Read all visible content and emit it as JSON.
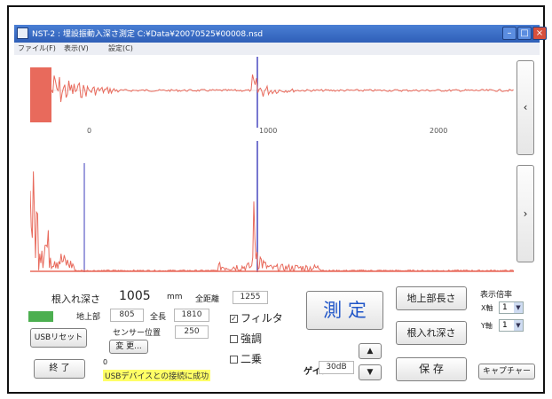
{
  "window": {
    "title": "NST-2 : 埋設振動入深さ測定  C:¥Data¥20070525¥00008.nsd",
    "menu": [
      "ファイル(F)",
      "表示(V)",
      "設定(C)"
    ]
  },
  "waveform": {
    "ticks": [
      "0",
      "1000",
      "2000"
    ],
    "trace_color": "#e86a5c",
    "marker_color": "#3d3dbb"
  },
  "nav": {
    "left_symbol": "‹",
    "right_symbol": "›"
  },
  "readings": {
    "depth_label": "根入れ深さ",
    "depth_value": "1005",
    "depth_unit": "mm",
    "total_distance_label": "全距離",
    "total_distance_value": "1255",
    "above_ground_label": "地上部",
    "above_ground_value": "805",
    "total_length_label": "全長",
    "total_length_value": "1810",
    "sensor_position_label": "センサー位置",
    "sensor_position_value": "250",
    "status_indicator_color": "#4caf50",
    "counter_value": "0"
  },
  "buttons": {
    "usb_reset": "USBリセット",
    "change": "変 更...",
    "exit": "終 了",
    "measure": "測 定",
    "above_ground_length": "地上部長さ",
    "embedded_depth": "根入れ深さ",
    "save": "保 存",
    "capture": "キャプチャー",
    "gain_up": "▲",
    "gain_down": "▼"
  },
  "options": {
    "filter": {
      "label": "フィルタ",
      "checked": true
    },
    "emphasis": {
      "label": "強調",
      "checked": false
    },
    "square": {
      "label": "二乗",
      "checked": false
    }
  },
  "gain": {
    "label": "ゲイン",
    "value": "30dB"
  },
  "display_scale": {
    "label": "表示倍率",
    "x_axis_label": "X軸",
    "x_axis_value": "1",
    "y_axis_label": "Y軸",
    "y_axis_value": "1"
  },
  "status_message": "USBデバイスとの接続に成功",
  "colors": {
    "title_bar": "#3a6cc8",
    "measure_text": "#1f55c8",
    "status_highlight": "#ffff66"
  }
}
